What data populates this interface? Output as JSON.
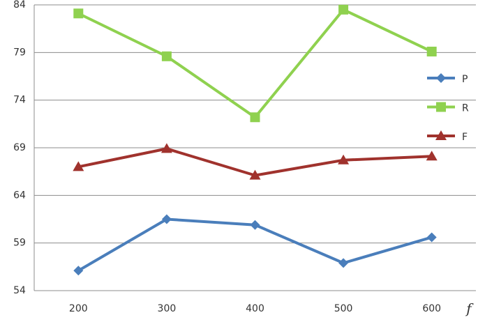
{
  "chart_data": {
    "type": "line",
    "x_label": "f",
    "categories": [
      "200",
      "300",
      "400",
      "500",
      "600"
    ],
    "series": [
      {
        "name": "P",
        "color": "#4a7ebb",
        "marker": "diamond",
        "values": [
          56.1,
          61.5,
          60.9,
          56.9,
          59.6
        ]
      },
      {
        "name": "R",
        "color": "#8fd14f",
        "marker": "square",
        "values": [
          83.1,
          78.6,
          72.2,
          83.5,
          79.1
        ]
      },
      {
        "name": "F",
        "color": "#a0322d",
        "marker": "triangle",
        "values": [
          67.0,
          68.9,
          66.1,
          67.7,
          68.1
        ]
      }
    ],
    "ylim": [
      54,
      84
    ],
    "yticks": [
      54,
      59,
      64,
      69,
      74,
      79,
      84
    ],
    "grid": true,
    "legend": "right"
  }
}
